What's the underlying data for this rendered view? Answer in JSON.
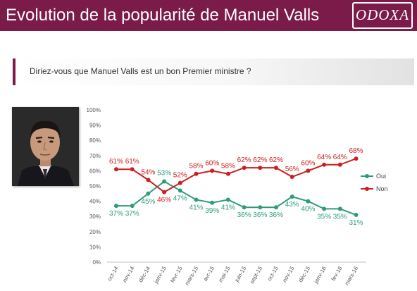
{
  "header": {
    "title": "Evolution de la popularité de Manuel Valls",
    "logo_text": "ODOXA"
  },
  "question": {
    "text": "Diriez-vous que Manuel Valls est un bon Premier ministre ?"
  },
  "colors": {
    "brand": "#7a1b4a",
    "oui": "#2e9c7a",
    "non": "#cc1f1f"
  },
  "chart_data": {
    "type": "line",
    "categories": [
      "oct-14",
      "nov-14",
      "déc-14",
      "janv-15",
      "févr-15",
      "mars-15",
      "avr-15",
      "mai-15",
      "juin-15",
      "sept-15",
      "oct-15",
      "nov-15",
      "déc-15",
      "janv-16",
      "fev-16",
      "mars-16"
    ],
    "series": [
      {
        "name": "Oui",
        "color": "#2e9c7a",
        "values": [
          37,
          37,
          45,
          53,
          47,
          41,
          39,
          41,
          36,
          36,
          36,
          43,
          40,
          35,
          35,
          31
        ],
        "labels": [
          "37%",
          "37%",
          "45%",
          "53%",
          "47%",
          "41%",
          "39%",
          "41%",
          "36%",
          "36%",
          "36%",
          "43%",
          "40%",
          "35%",
          "35%",
          "31%"
        ]
      },
      {
        "name": "Non",
        "color": "#cc1f1f",
        "values": [
          61,
          61,
          54,
          46,
          52,
          58,
          60,
          58,
          62,
          62,
          62,
          56,
          60,
          64,
          64,
          68
        ],
        "labels": [
          "61%",
          "61%",
          "54%",
          "46%",
          "52%",
          "58%",
          "60%",
          "58%",
          "62%",
          "62%",
          "62%",
          "56%",
          "60%",
          "64%",
          "64%",
          "68%"
        ]
      }
    ],
    "ylim": [
      0,
      100
    ],
    "yticks": [
      "0%",
      "10%",
      "20%",
      "30%",
      "40%",
      "50%",
      "60%",
      "70%",
      "80%",
      "90%",
      "100%"
    ],
    "grid": false,
    "legend": "right",
    "title": "",
    "xlabel": "",
    "ylabel": ""
  }
}
